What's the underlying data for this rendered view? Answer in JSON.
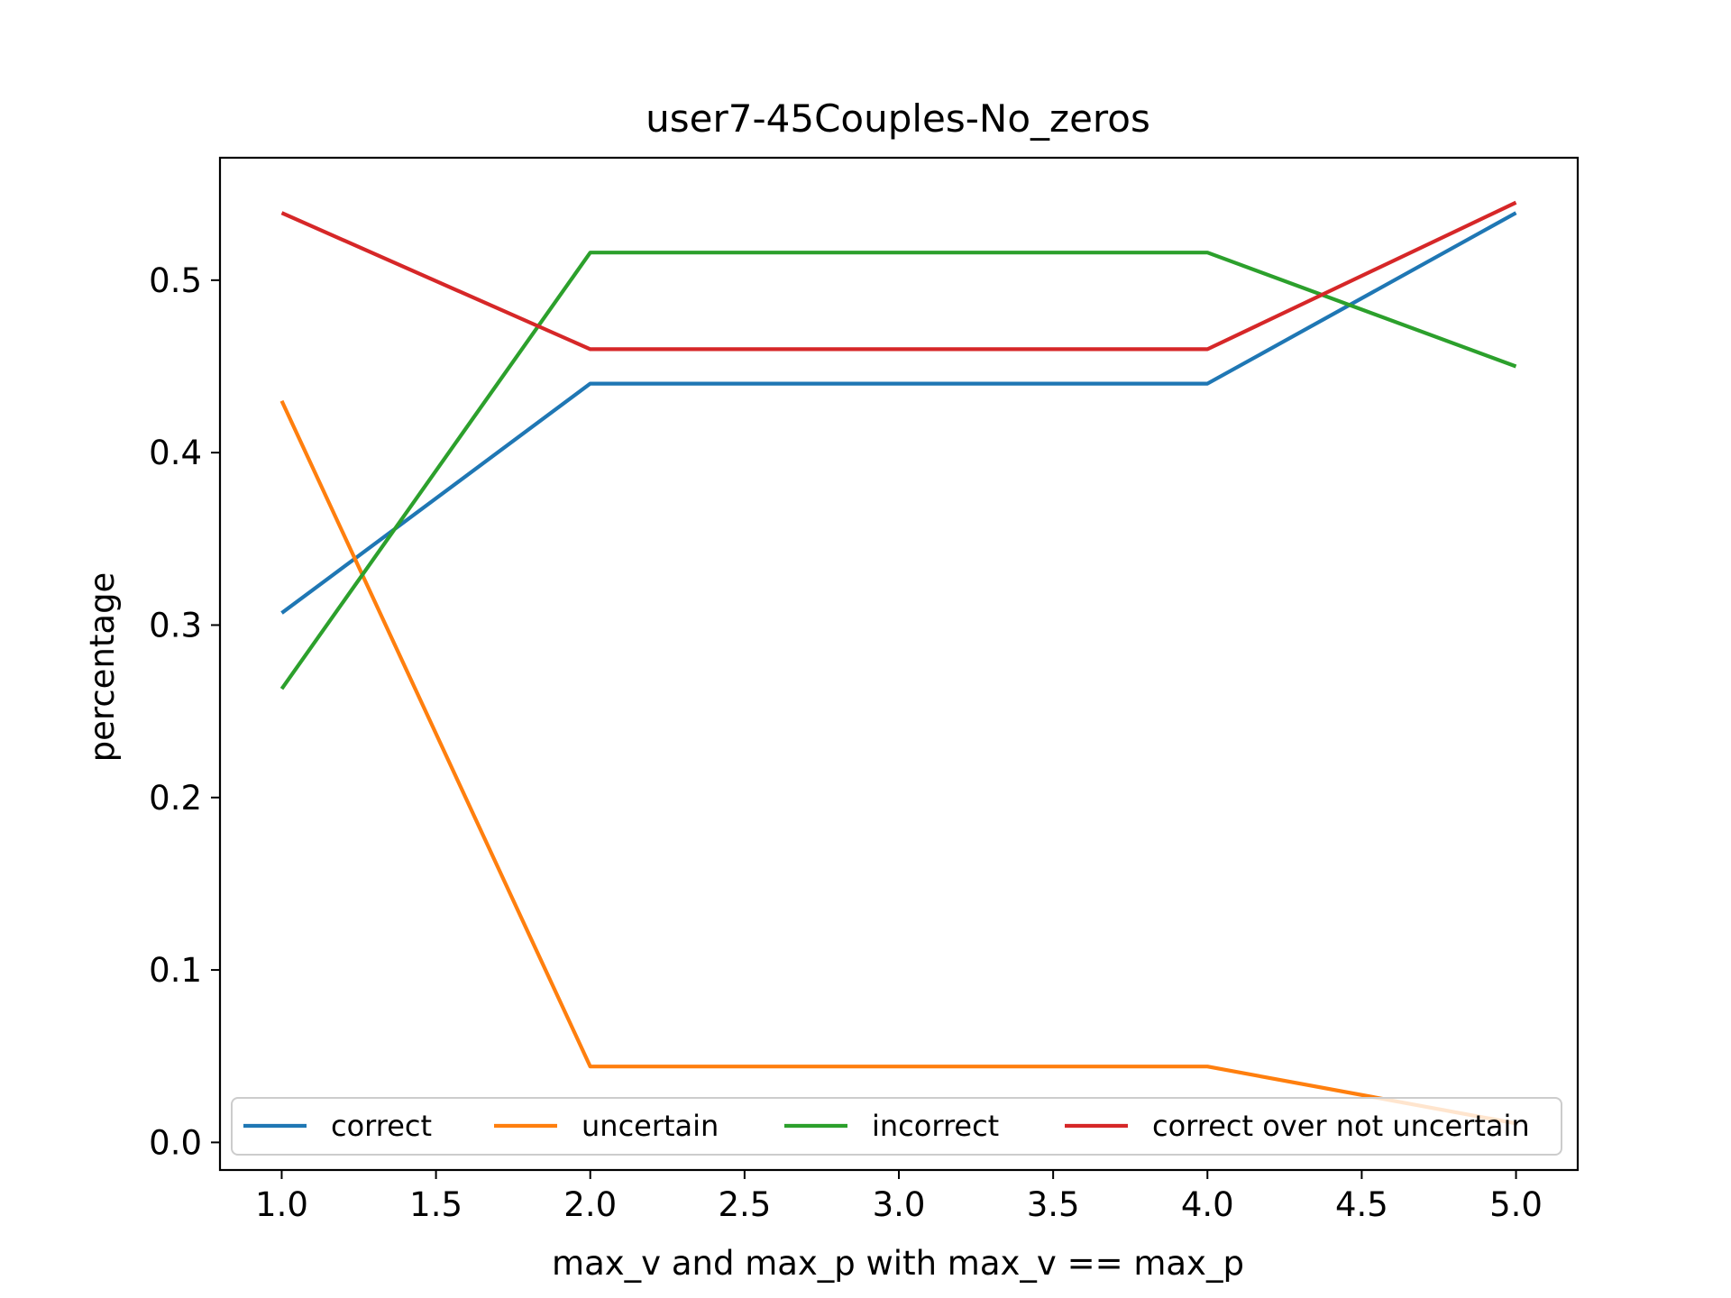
{
  "chart_data": {
    "type": "line",
    "title": "user7-45Couples-No_zeros",
    "xlabel": "max_v and max_p with max_v == max_p",
    "ylabel": "percentage",
    "xlim": [
      0.8,
      5.2
    ],
    "ylim": [
      -0.016,
      0.571
    ],
    "xticks": [
      1.0,
      1.5,
      2.0,
      2.5,
      3.0,
      3.5,
      4.0,
      4.5,
      5.0
    ],
    "xtick_labels": [
      "1.0",
      "1.5",
      "2.0",
      "2.5",
      "3.0",
      "3.5",
      "4.0",
      "4.5",
      "5.0"
    ],
    "yticks": [
      0.0,
      0.1,
      0.2,
      0.3,
      0.4,
      0.5
    ],
    "ytick_labels": [
      "0.0",
      "0.1",
      "0.2",
      "0.3",
      "0.4",
      "0.5"
    ],
    "grid": false,
    "legend_position": "bottom, inside plot area (4 columns)",
    "x": [
      1,
      2,
      4,
      5
    ],
    "series": [
      {
        "name": "correct",
        "color": "#1f77b4",
        "values": [
          0.307,
          0.44,
          0.44,
          0.539
        ]
      },
      {
        "name": "uncertain",
        "color": "#ff7f0e",
        "values": [
          0.43,
          0.044,
          0.044,
          0.011
        ]
      },
      {
        "name": "incorrect",
        "color": "#2ca02c",
        "values": [
          0.263,
          0.516,
          0.516,
          0.45
        ]
      },
      {
        "name": "correct over not uncertain",
        "color": "#d62728",
        "values": [
          0.539,
          0.46,
          0.46,
          0.545
        ]
      }
    ]
  }
}
